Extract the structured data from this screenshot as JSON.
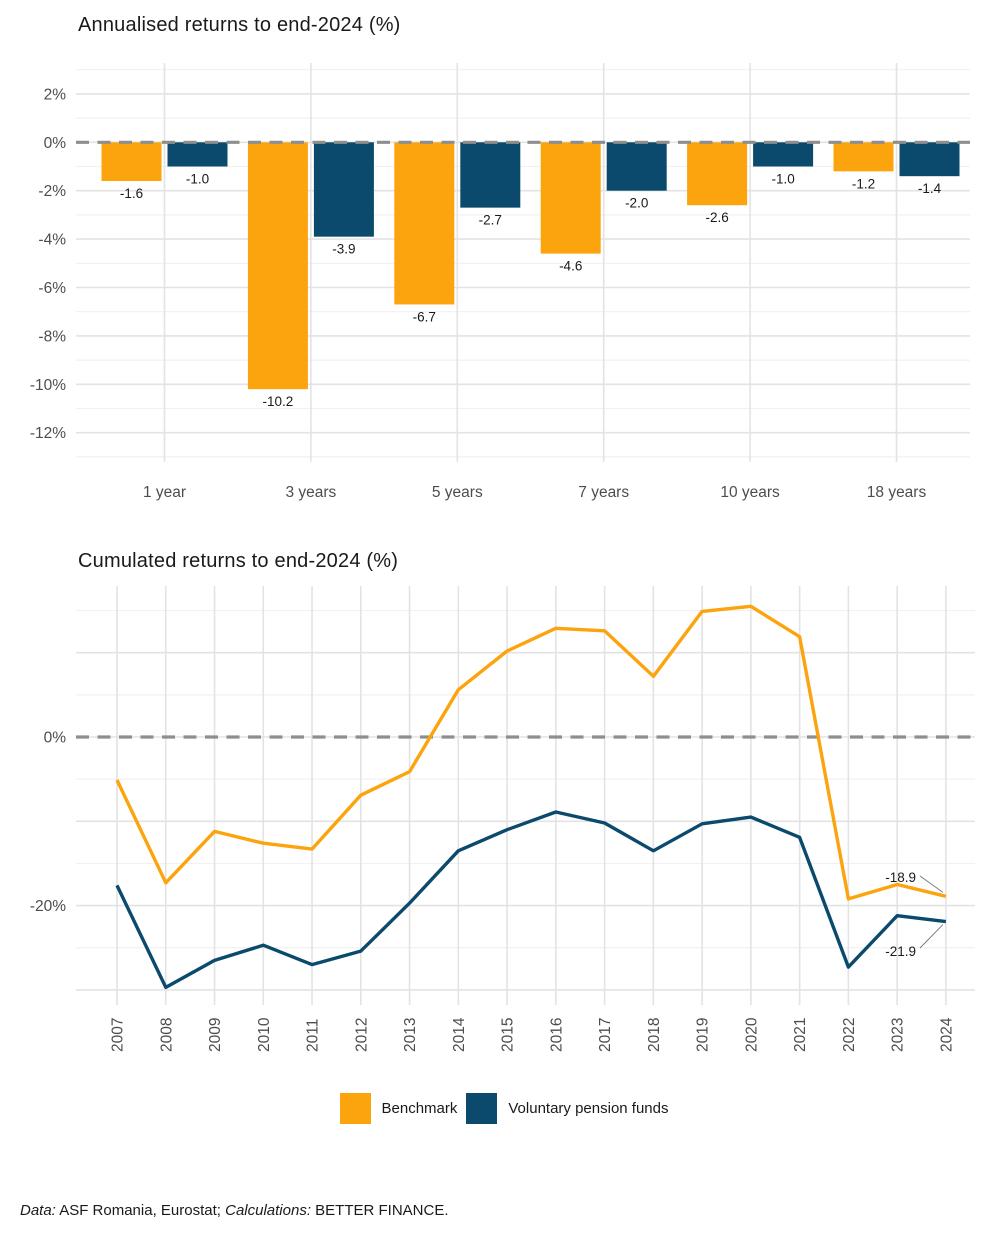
{
  "colors": {
    "benchmark": "#FBA40E",
    "pension_funds": "#0B4A6D",
    "grid_major": "#E3E3E3",
    "grid_minor": "#F1F1F1",
    "zero_dash": "#8E8E8E",
    "axis_text": "#4D4D4D",
    "text": "#1A1A1A",
    "leader_line": "#777777"
  },
  "chart_data": [
    {
      "type": "bar",
      "title": "Annualised returns to end-2024 (%)",
      "categories": [
        "1 year",
        "3 years",
        "5 years",
        "7 years",
        "10 years",
        "18 years"
      ],
      "series": [
        {
          "name": "Benchmark",
          "color": "#FBA40E",
          "values": [
            -1.6,
            -10.2,
            -6.7,
            -4.6,
            -2.6,
            -1.2
          ]
        },
        {
          "name": "Voluntary pension funds",
          "color": "#0B4A6D",
          "values": [
            -1.0,
            -3.9,
            -2.7,
            -2.0,
            -1.0,
            -1.4
          ]
        }
      ],
      "value_labels": [
        "-1.6",
        "-1.0",
        "-10.2",
        "-3.9",
        "-6.7",
        "-2.7",
        "-4.6",
        "-2.0",
        "-2.6",
        "-1.0",
        "-1.2",
        "-1.4"
      ],
      "ylim": [
        -13.2,
        3.3
      ],
      "yticks_major": [
        2,
        0,
        -2,
        -4,
        -6,
        -8,
        -10,
        -12
      ],
      "yticks_minor": [
        3,
        1,
        -1,
        -3,
        -5,
        -7,
        -9,
        -11,
        -13
      ],
      "ytick_suffix": "%",
      "zero_line": "dashed",
      "grid": "on",
      "legend_position": "none"
    },
    {
      "type": "line",
      "title": "Cumulated returns to end-2024 (%)",
      "x": [
        2007,
        2008,
        2009,
        2010,
        2011,
        2012,
        2013,
        2014,
        2015,
        2016,
        2017,
        2018,
        2019,
        2020,
        2021,
        2022,
        2023,
        2024
      ],
      "series": [
        {
          "name": "Benchmark",
          "color": "#FBA40E",
          "values": [
            -5.1,
            -17.3,
            -11.2,
            -12.6,
            -13.3,
            -6.9,
            -4.1,
            5.6,
            10.2,
            12.9,
            12.6,
            7.2,
            14.9,
            15.5,
            11.9,
            -19.2,
            -17.5,
            -18.9
          ],
          "end_label": "-18.9"
        },
        {
          "name": "Voluntary pension funds",
          "color": "#0B4A6D",
          "values": [
            -17.6,
            -29.7,
            -26.5,
            -24.7,
            -27.0,
            -25.4,
            -19.7,
            -13.5,
            -11.0,
            -8.9,
            -10.2,
            -13.5,
            -10.3,
            -9.5,
            -11.9,
            -27.3,
            -21.2,
            -21.9
          ],
          "end_label": "-21.9"
        }
      ],
      "ylim": [
        -31.8,
        18.0
      ],
      "yticks_major": [
        10,
        0,
        -10,
        -20,
        -30
      ],
      "yticks_minor": [
        15,
        5,
        -5,
        -15,
        -25
      ],
      "ytick_labels": {
        "0": "0%",
        "-20": "-20%"
      },
      "zero_line": "dashed",
      "grid": "on",
      "legend_position": "bottom"
    }
  ],
  "legend": {
    "items": [
      {
        "label": "Benchmark",
        "color": "#FBA40E"
      },
      {
        "label": "Voluntary pension funds",
        "color": "#0B4A6D"
      }
    ]
  },
  "footer": {
    "data_label": "Data:",
    "data_text": " ASF Romania, Eurostat; ",
    "calc_label": "Calculations:",
    "calc_text": " BETTER FINANCE."
  }
}
